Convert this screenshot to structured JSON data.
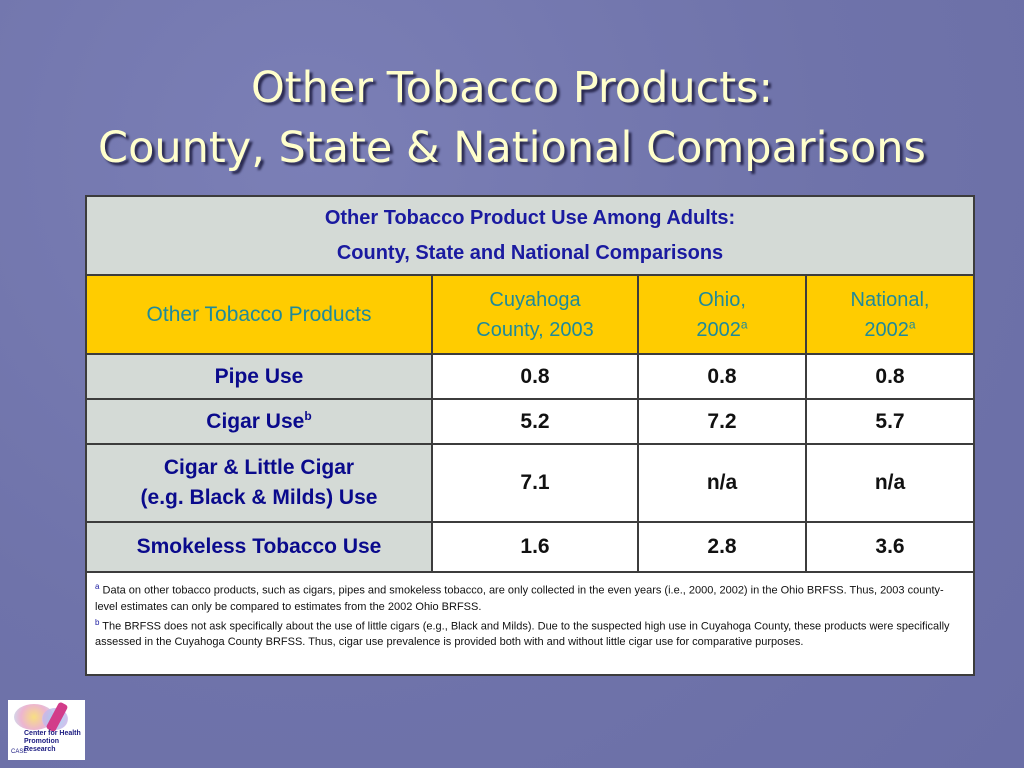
{
  "slide": {
    "title_line1": "Other Tobacco Products:",
    "title_line2": "County, State & National Comparisons"
  },
  "table": {
    "caption_line1": "Other Tobacco Product Use Among Adults:",
    "caption_line2": "County, State and National Comparisons",
    "headers": {
      "col1": "Other Tobacco Products",
      "col2_line1": "Cuyahoga",
      "col2_line2": "County, 2003",
      "col3_line1": "Ohio,",
      "col3_line2": "2002",
      "col3_sup": "a",
      "col4_line1": "National,",
      "col4_line2": "2002",
      "col4_sup": "a"
    },
    "rows": [
      {
        "label": "Pipe Use",
        "sup": "",
        "county": "0.8",
        "ohio": "0.8",
        "national": "0.8"
      },
      {
        "label": "Cigar Use",
        "sup": "b",
        "county": "5.2",
        "ohio": "7.2",
        "national": "5.7"
      },
      {
        "label_line1": "Cigar & Little Cigar",
        "label_line2": "(e.g. Black & Milds) Use",
        "county": "7.1",
        "ohio": "n/a",
        "national": "n/a"
      },
      {
        "label": "Smokeless Tobacco Use",
        "sup": "",
        "county": "1.6",
        "ohio": "2.8",
        "national": "3.6"
      }
    ],
    "footnotes": {
      "a_mark": "a",
      "a_text": " Data on other tobacco products, such as cigars, pipes and smokeless tobacco, are only collected in the even years (i.e., 2000, 2002) in the Ohio BRFSS.  Thus, 2003 county-level estimates can only be compared to estimates from the 2002 Ohio BRFSS.",
      "b_mark": "b",
      "b_text": " The BRFSS does not ask specifically about the use of little cigars (e.g., Black and Milds).   Due to the suspected high use in Cuyahoga County, these products were specifically assessed in the Cuyahoga County BRFSS.   Thus, cigar use prevalence is provided both with and without little cigar use for comparative purposes."
    }
  },
  "logo": {
    "line1": "Center for Health",
    "line2": "Promotion Research",
    "org": "CASE"
  },
  "colors": {
    "background": "#7276ad",
    "title": "#ffffcc",
    "header_fill": "#ffcc00",
    "caption_text": "#1a1aa0",
    "header_text": "#1f8a9a"
  }
}
